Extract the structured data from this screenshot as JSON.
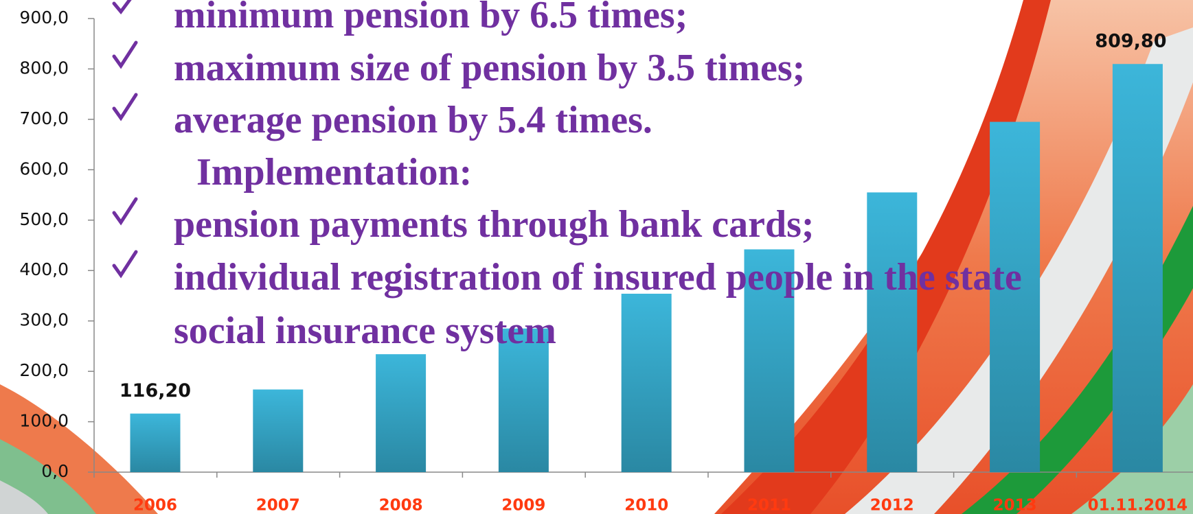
{
  "chart_data": {
    "type": "bar",
    "categories": [
      "2006",
      "2007",
      "2008",
      "2009",
      "2010",
      "2011",
      "2012",
      "2013",
      "01.11.2014"
    ],
    "values": [
      116.2,
      164,
      234,
      285,
      354,
      442,
      555,
      695,
      809.8
    ],
    "value_labels": [
      "116,20",
      null,
      null,
      null,
      null,
      null,
      null,
      null,
      "809,80"
    ],
    "color": "#33afd4",
    "ylim": [
      0,
      900
    ],
    "yticks": [
      {
        "value": 0,
        "label": "0,0"
      },
      {
        "value": 100,
        "label": "100,0"
      },
      {
        "value": 200,
        "label": "200,0"
      },
      {
        "value": 300,
        "label": "300,0"
      },
      {
        "value": 400,
        "label": "400,0"
      },
      {
        "value": 500,
        "label": "500,0"
      },
      {
        "value": 600,
        "label": "600,0"
      },
      {
        "value": 700,
        "label": "700,0"
      },
      {
        "value": 800,
        "label": "800,0"
      },
      {
        "value": 900,
        "label": "900,0"
      }
    ],
    "grid": false,
    "annotations": [
      "minimum pension by 6.5 times;",
      "maximum size of pension by 3.5 times;",
      "average pension by 5.4 times.",
      "Implementation:",
      "pension payments through bank cards;",
      "individual registration of insured people in the state",
      "social insurance system"
    ]
  }
}
